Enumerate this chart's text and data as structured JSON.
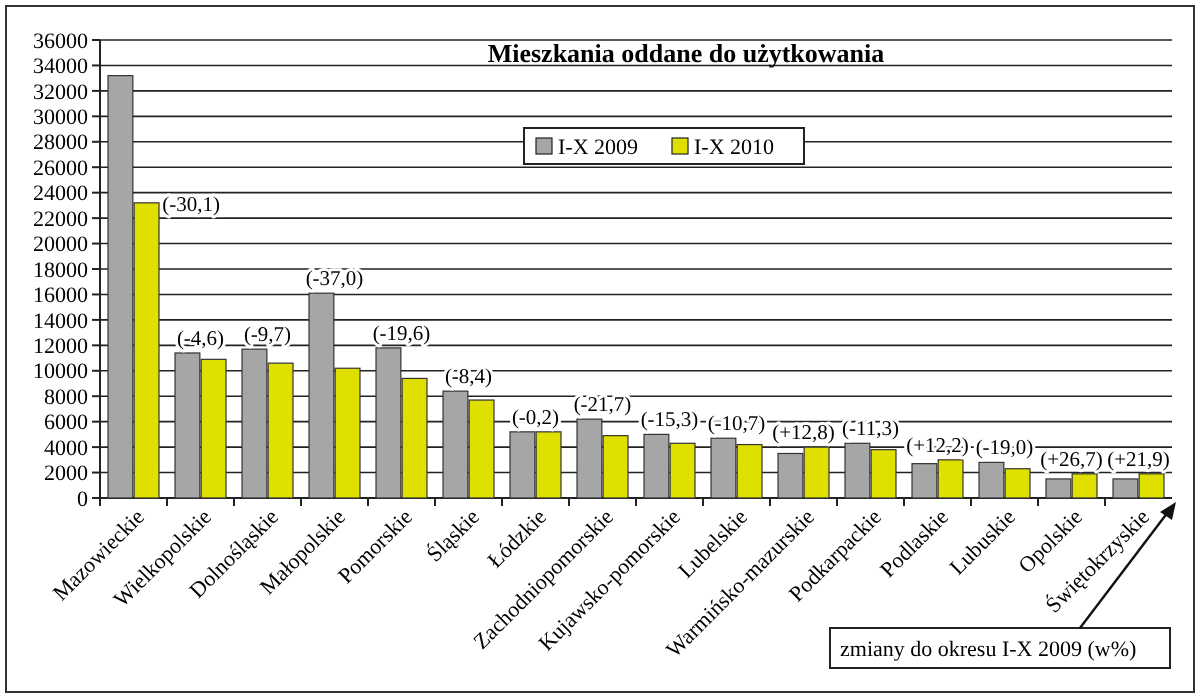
{
  "chart_data": {
    "type": "bar",
    "title": "Mieszkania oddane do użytkowania",
    "categories": [
      "Mazowieckie",
      "Wielkopolskie",
      "Dolnośląskie",
      "Małopolskie",
      "Pomorskie",
      "Śląskie",
      "Łódzkie",
      "Zachodniopomorskie",
      "Kujawsko-pomorskie",
      "Lubelskie",
      "Warmińsko-mazurskie",
      "Podkarpackie",
      "Podlaskie",
      "Lubuskie",
      "Opolskie",
      "Świętokrzyskie"
    ],
    "series": [
      {
        "name": "I-X 2009",
        "color": "#a6a6a6",
        "values": [
          33200,
          11400,
          11700,
          16100,
          11800,
          8400,
          5200,
          6200,
          5000,
          4700,
          3500,
          4300,
          2700,
          2800,
          1500,
          1500
        ]
      },
      {
        "name": "I-X 2010",
        "color": "#e0e000",
        "values": [
          23200,
          10900,
          10600,
          10200,
          9400,
          7700,
          5200,
          4900,
          4300,
          4200,
          4000,
          3800,
          3000,
          2300,
          1900,
          1900
        ]
      }
    ],
    "ylim": [
      0,
      36000
    ],
    "yticks": [
      0,
      2000,
      4000,
      6000,
      8000,
      10000,
      12000,
      14000,
      16000,
      18000,
      20000,
      22000,
      24000,
      26000,
      28000,
      30000,
      32000,
      34000,
      36000
    ],
    "grid": "y",
    "legend": "top",
    "annotations": [
      {
        "text": "(-30,1)",
        "x": "Mazowieckie",
        "y": 23200
      },
      {
        "text": "(-4,6)",
        "x": "Wielkopolskie",
        "y": 11400
      },
      {
        "text": "(-9,7)",
        "x": "Dolnośląskie",
        "y": 11700
      },
      {
        "text": "(-37,0)",
        "x": "Małopolskie",
        "y": 16100
      },
      {
        "text": "(-19,6)",
        "x": "Pomorskie",
        "y": 11800
      },
      {
        "text": "(-8,4)",
        "x": "Śląskie",
        "y": 8400
      },
      {
        "text": "(-0,2)",
        "x": "Łódzkie",
        "y": 5200
      },
      {
        "text": "(-21,7)",
        "x": "Zachodniopomorskie",
        "y": 6200
      },
      {
        "text": "(-15,3)",
        "x": "Kujawsko-pomorskie",
        "y": 5000
      },
      {
        "text": "(-10,7)",
        "x": "Lubelskie",
        "y": 4700
      },
      {
        "text": "(+12,8)",
        "x": "Warmińsko-mazurskie",
        "y": 4000
      },
      {
        "text": "(-11,3)",
        "x": "Podkarpackie",
        "y": 4300
      },
      {
        "text": "(+12,2)",
        "x": "Podlaskie",
        "y": 3000
      },
      {
        "text": "(-19,0)",
        "x": "Lubuskie",
        "y": 2800
      },
      {
        "text": "(+26,7)",
        "x": "Opolskie",
        "y": 1900
      },
      {
        "text": "(+21,9)",
        "x": "Świętokrzyskie",
        "y": 1900
      },
      "zmiany do okresu I-X 2009 (w%)"
    ]
  }
}
